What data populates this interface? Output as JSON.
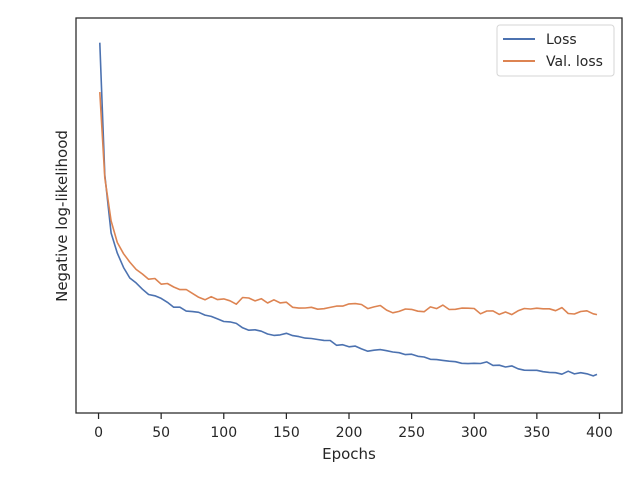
{
  "chart_data": {
    "type": "line",
    "xlabel": "Epochs",
    "ylabel": "Negative log-likelihood",
    "xlim": [
      -18,
      418
    ],
    "ylim": [
      -0.05,
      1.07
    ],
    "x_ticks": [
      0,
      50,
      100,
      150,
      200,
      250,
      300,
      350,
      400
    ],
    "y_ticks_visible": false,
    "grid": false,
    "legend_position": "top-right",
    "x_resolution": 5,
    "series": [
      {
        "name": "Loss",
        "color": "#4c72b0",
        "x": [
          1,
          5,
          10,
          15,
          20,
          25,
          30,
          35,
          40,
          45,
          50,
          55,
          60,
          65,
          70,
          75,
          80,
          85,
          90,
          95,
          100,
          105,
          110,
          115,
          120,
          125,
          130,
          135,
          140,
          145,
          150,
          155,
          160,
          165,
          170,
          175,
          180,
          185,
          190,
          195,
          200,
          205,
          210,
          215,
          220,
          225,
          230,
          235,
          240,
          245,
          250,
          255,
          260,
          265,
          270,
          275,
          280,
          285,
          290,
          295,
          300,
          305,
          310,
          315,
          320,
          325,
          330,
          335,
          340,
          345,
          350,
          355,
          360,
          365,
          370,
          375,
          380,
          385,
          390,
          395,
          398
        ],
        "values": [
          1.0,
          0.62,
          0.46,
          0.4,
          0.36,
          0.33,
          0.315,
          0.3,
          0.29,
          0.285,
          0.275,
          0.265,
          0.255,
          0.25,
          0.24,
          0.235,
          0.23,
          0.225,
          0.22,
          0.215,
          0.205,
          0.205,
          0.2,
          0.195,
          0.19,
          0.19,
          0.185,
          0.18,
          0.175,
          0.175,
          0.17,
          0.165,
          0.165,
          0.16,
          0.16,
          0.155,
          0.15,
          0.15,
          0.145,
          0.145,
          0.14,
          0.14,
          0.135,
          0.13,
          0.13,
          0.125,
          0.125,
          0.12,
          0.12,
          0.115,
          0.115,
          0.11,
          0.11,
          0.105,
          0.105,
          0.1,
          0.1,
          0.1,
          0.095,
          0.095,
          0.09,
          0.09,
          0.09,
          0.085,
          0.085,
          0.08,
          0.08,
          0.08,
          0.075,
          0.075,
          0.075,
          0.07,
          0.07,
          0.07,
          0.065,
          0.065,
          0.06,
          0.06,
          0.06,
          0.055,
          0.055
        ]
      },
      {
        "name": "Val. loss",
        "color": "#dd8452",
        "x": [
          1,
          5,
          10,
          15,
          20,
          25,
          30,
          35,
          40,
          45,
          50,
          55,
          60,
          65,
          70,
          75,
          80,
          85,
          90,
          95,
          100,
          105,
          110,
          115,
          120,
          125,
          130,
          135,
          140,
          145,
          150,
          155,
          160,
          165,
          170,
          175,
          180,
          185,
          190,
          195,
          200,
          205,
          210,
          215,
          220,
          225,
          230,
          235,
          240,
          245,
          250,
          255,
          260,
          265,
          270,
          275,
          280,
          285,
          290,
          295,
          300,
          305,
          310,
          315,
          320,
          325,
          330,
          335,
          340,
          345,
          350,
          355,
          360,
          365,
          370,
          375,
          380,
          385,
          390,
          395,
          398
        ],
        "values": [
          0.86,
          0.62,
          0.5,
          0.44,
          0.41,
          0.38,
          0.36,
          0.35,
          0.335,
          0.325,
          0.315,
          0.31,
          0.3,
          0.295,
          0.29,
          0.285,
          0.285,
          0.28,
          0.28,
          0.275,
          0.275,
          0.27,
          0.27,
          0.27,
          0.265,
          0.265,
          0.265,
          0.26,
          0.26,
          0.26,
          0.26,
          0.255,
          0.255,
          0.255,
          0.255,
          0.255,
          0.25,
          0.25,
          0.25,
          0.25,
          0.25,
          0.25,
          0.25,
          0.245,
          0.245,
          0.245,
          0.245,
          0.245,
          0.245,
          0.245,
          0.245,
          0.245,
          0.245,
          0.245,
          0.245,
          0.245,
          0.24,
          0.24,
          0.24,
          0.24,
          0.24,
          0.24,
          0.24,
          0.24,
          0.24,
          0.24,
          0.24,
          0.24,
          0.24,
          0.24,
          0.24,
          0.24,
          0.24,
          0.24,
          0.24,
          0.24,
          0.24,
          0.24,
          0.24,
          0.24,
          0.24
        ]
      }
    ]
  }
}
